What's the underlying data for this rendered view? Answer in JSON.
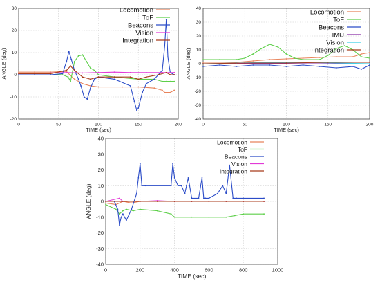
{
  "chart_data": [
    {
      "type": "line",
      "title": "",
      "xlabel": "TIME (sec)",
      "ylabel": "ANGLE (deg)",
      "xlim": [
        0,
        200
      ],
      "ylim": [
        -20,
        30
      ],
      "xticks": [
        "0",
        "50",
        "100",
        "150",
        "200"
      ],
      "yticks": [
        "-20",
        "-10",
        "0",
        "10",
        "20",
        "30"
      ],
      "grid": true,
      "legend_position": "top-right",
      "series": [
        {
          "name": "Locomotion",
          "color": "#e8845c",
          "x": [
            0,
            20,
            40,
            60,
            64,
            70,
            80,
            90,
            100,
            130,
            150,
            170,
            180,
            183,
            190,
            195
          ],
          "y": [
            1.2,
            1.2,
            1.2,
            1.5,
            0,
            -2,
            -4,
            -5,
            -5.5,
            -5.5,
            -5.5,
            -6,
            -7,
            -8,
            -8,
            -7
          ]
        },
        {
          "name": "ToF",
          "color": "#5ecf4a",
          "x": [
            0,
            20,
            40,
            55,
            62,
            65,
            70,
            75,
            80,
            85,
            90,
            95,
            100,
            120,
            150,
            170,
            180,
            185,
            190,
            195
          ],
          "y": [
            0,
            0,
            0,
            0,
            -1,
            -3,
            6,
            8.5,
            9,
            6,
            3,
            2,
            0,
            -1,
            -2,
            -2,
            -3,
            -3,
            -3,
            -3
          ]
        },
        {
          "name": "Beacons",
          "color": "#2b4cc8",
          "x": [
            0,
            20,
            40,
            55,
            60,
            63,
            66,
            70,
            75,
            78,
            82,
            86,
            90,
            95,
            100,
            120,
            140,
            145,
            148,
            150,
            155,
            160,
            170,
            180,
            183,
            185,
            187,
            190,
            195
          ],
          "y": [
            0,
            0,
            0,
            0.5,
            6,
            10.5,
            7,
            2,
            -2,
            -5,
            -10,
            -11,
            -6,
            -2,
            -1,
            -2,
            -5,
            -12,
            -16,
            -15,
            -8,
            -4,
            -2,
            2,
            13,
            25,
            8,
            1,
            0
          ]
        },
        {
          "name": "Vision",
          "color": "#e23ad7",
          "x": [
            0,
            20,
            40,
            60,
            80,
            100,
            120,
            140,
            160,
            180,
            195
          ],
          "y": [
            0.5,
            0.5,
            0.8,
            1,
            0.8,
            1,
            1.2,
            1,
            1,
            1,
            1
          ]
        },
        {
          "name": "Integration",
          "color": "#a83a1a",
          "x": [
            0,
            20,
            40,
            60,
            65,
            70,
            80,
            90,
            100,
            120,
            140,
            150,
            160,
            175,
            185,
            190,
            195
          ],
          "y": [
            0.5,
            0.5,
            0.5,
            2,
            4,
            2,
            -1,
            -2,
            -1,
            -1,
            -1,
            -2,
            -1,
            0,
            1,
            0,
            0
          ]
        }
      ]
    },
    {
      "type": "line",
      "title": "",
      "xlabel": "TIME (sec)",
      "ylabel": "ANGLE (deg)",
      "xlim": [
        0,
        200
      ],
      "ylim": [
        -40,
        40
      ],
      "xticks": [
        "0",
        "50",
        "100",
        "150",
        "200"
      ],
      "yticks": [
        "-40",
        "-30",
        "-20",
        "-10",
        "0",
        "10",
        "20",
        "30",
        "40"
      ],
      "grid": true,
      "legend_position": "top-right",
      "series": [
        {
          "name": "Locomotion",
          "color": "#e8845c",
          "x": [
            0,
            40,
            60,
            80,
            100,
            120,
            140,
            160,
            180,
            190,
            200
          ],
          "y": [
            1,
            1,
            2,
            3,
            3.5,
            4,
            4.5,
            5,
            5,
            7,
            8
          ]
        },
        {
          "name": "ToF",
          "color": "#5ecf4a",
          "x": [
            0,
            20,
            40,
            50,
            60,
            70,
            80,
            90,
            100,
            110,
            120,
            140,
            150,
            160,
            170,
            180,
            190,
            200
          ],
          "y": [
            3,
            3,
            3,
            4,
            7,
            11,
            14,
            12,
            7,
            4,
            3,
            3,
            6,
            11,
            13,
            10,
            5,
            4
          ]
        },
        {
          "name": "Beacons",
          "color": "#2b4cc8",
          "x": [
            0,
            20,
            40,
            60,
            80,
            100,
            120,
            140,
            160,
            180,
            190,
            200
          ],
          "y": [
            -2,
            -1,
            -2,
            -1,
            -1,
            -2,
            -1,
            -2,
            -3,
            -2,
            -4,
            -1
          ]
        },
        {
          "name": "IMU",
          "color": "#8a2fa8",
          "x": [
            0,
            50,
            100,
            150,
            200
          ],
          "y": [
            0,
            0,
            0,
            0,
            0
          ]
        },
        {
          "name": "Vision",
          "color": "#3cd0e6",
          "x": [
            0,
            40,
            80,
            120,
            160,
            200
          ],
          "y": [
            0,
            0.5,
            1,
            1,
            0.5,
            0
          ]
        },
        {
          "name": "Integration",
          "color": "#a83a1a",
          "x": [
            0,
            50,
            100,
            150,
            200
          ],
          "y": [
            0,
            0.5,
            0.5,
            1,
            1
          ]
        }
      ]
    },
    {
      "type": "line",
      "title": "",
      "xlabel": "TIME (sec)",
      "ylabel": "ANGLE (deg)",
      "xlim": [
        0,
        1000
      ],
      "ylim": [
        -40,
        40
      ],
      "xticks": [
        "0",
        "200",
        "400",
        "600",
        "800",
        "1000"
      ],
      "yticks": [
        "-40",
        "-30",
        "-20",
        "-10",
        "0",
        "10",
        "20",
        "30",
        "40"
      ],
      "grid": true,
      "legend_position": "top-right",
      "series": [
        {
          "name": "Locomotion",
          "color": "#e8845c",
          "x": [
            0,
            60,
            100,
            150,
            200,
            300,
            400,
            500,
            600,
            700,
            800,
            920
          ],
          "y": [
            -1,
            -2,
            0,
            -1,
            0,
            0,
            0,
            0,
            0,
            0,
            0,
            0
          ]
        },
        {
          "name": "ToF",
          "color": "#5ecf4a",
          "x": [
            0,
            60,
            80,
            100,
            120,
            160,
            200,
            300,
            380,
            400,
            500,
            600,
            700,
            750,
            800,
            920
          ],
          "y": [
            -2,
            -5,
            -8,
            -6,
            -5,
            -6,
            -5,
            -6,
            -8,
            -10,
            -10,
            -10,
            -10,
            -9,
            -8,
            -8
          ]
        },
        {
          "name": "Beacons",
          "color": "#2b4cc8",
          "x": [
            0,
            50,
            70,
            80,
            90,
            100,
            120,
            150,
            180,
            190,
            200,
            210,
            230,
            380,
            390,
            400,
            420,
            440,
            460,
            470,
            480,
            500,
            540,
            560,
            570,
            580,
            600,
            650,
            680,
            700,
            720,
            740,
            760,
            800,
            920
          ],
          "y": [
            0,
            0,
            -5,
            -15,
            -10,
            -8,
            -12,
            -5,
            5,
            15,
            24,
            10,
            10,
            10,
            24,
            15,
            10,
            10,
            5,
            10,
            15,
            2,
            2,
            15,
            2,
            2,
            2,
            5,
            10,
            5,
            23,
            2,
            2,
            2,
            2
          ]
        },
        {
          "name": "Vision",
          "color": "#e23ad7",
          "x": [
            0,
            80,
            100,
            200,
            300,
            400,
            500,
            600,
            700,
            800,
            920
          ],
          "y": [
            0,
            2,
            0,
            0,
            0.5,
            0,
            0,
            0,
            0,
            0,
            0
          ]
        },
        {
          "name": "Integration",
          "color": "#a83a1a",
          "x": [
            0,
            100,
            200,
            300,
            400,
            500,
            600,
            700,
            800,
            920
          ],
          "y": [
            0,
            0,
            0,
            0,
            0,
            0,
            0,
            0,
            0,
            0
          ]
        }
      ]
    }
  ]
}
